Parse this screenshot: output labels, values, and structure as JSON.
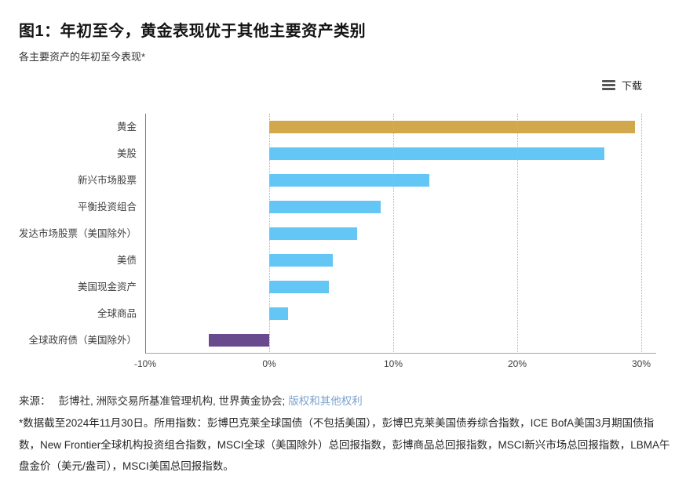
{
  "header": {
    "title": "图1：年初至今，黄金表现优于其他主要资产类别",
    "subtitle": "各主要资产的年初至今表现*"
  },
  "toolbar": {
    "download_label": "下载"
  },
  "chart_data": {
    "type": "bar",
    "orientation": "horizontal",
    "title": "各主要资产的年初至今表现*",
    "categories": [
      "黄金",
      "美股",
      "新兴市场股票",
      "平衡投资组合",
      "发达市场股票（美国除外）",
      "美债",
      "美国现金资产",
      "全球商品",
      "全球政府债（美国除外）"
    ],
    "values": [
      29.5,
      27.0,
      12.9,
      9.0,
      7.1,
      5.1,
      4.8,
      1.5,
      -4.9
    ],
    "bar_colors": [
      "#D2A84C",
      "#63C6F5",
      "#63C6F5",
      "#63C6F5",
      "#63C6F5",
      "#63C6F5",
      "#63C6F5",
      "#63C6F5",
      "#6A4A8F"
    ],
    "x_ticks": [
      "-10%",
      "0%",
      "10%",
      "20%",
      "30%"
    ],
    "x_tick_values": [
      -10,
      0,
      10,
      20,
      30
    ],
    "xlim": [
      -10,
      30
    ],
    "grid": "vertical-dotted",
    "legend": "none"
  },
  "footer": {
    "source_prefix": "来源：",
    "source_text": "彭博社, 洲际交易所基准管理机构, 世界黄金协会;",
    "source_link": "版权和其他权利",
    "footnote": "*数据截至2024年11月30日。所用指数：彭博巴克莱全球国债（不包括美国），彭博巴克莱美国债券综合指数，ICE BofA美国3月期国债指数，New Frontier全球机构投资组合指数，MSCI全球（美国除外）总回报指数，彭博商品总回报指数，MSCI新兴市场总回报指数，LBMA午盘金价（美元/盎司），MSCI美国总回报指数。"
  },
  "colors": {
    "gold": "#D2A84C",
    "blue": "#63C6F5",
    "purple": "#6A4A8F",
    "link_blue": "#7BA3CF"
  }
}
